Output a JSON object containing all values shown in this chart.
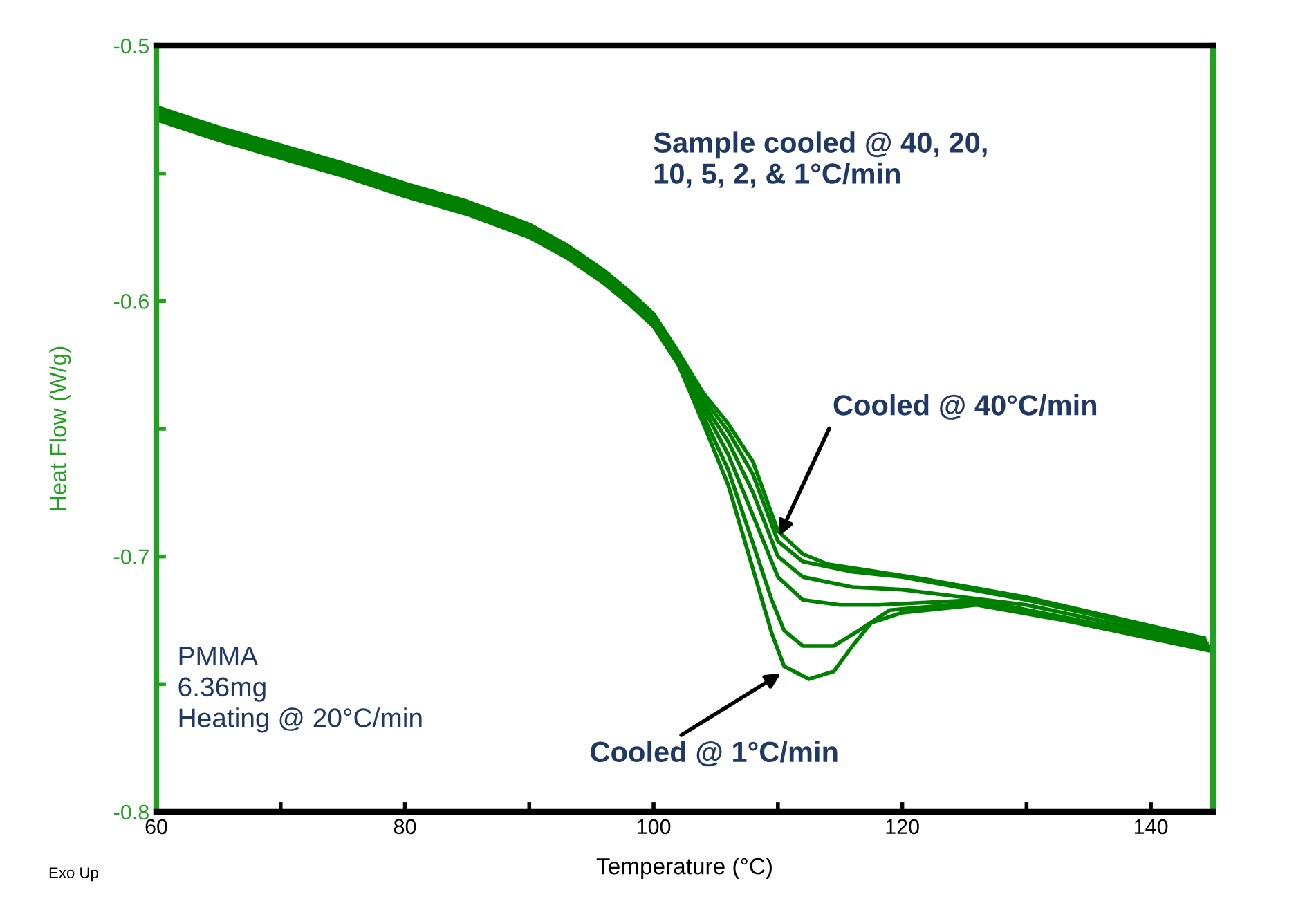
{
  "chart_data": {
    "type": "line",
    "xlabel": "Temperature (°C)",
    "ylabel": "Heat Flow (W/g)",
    "xlim": [
      60,
      145
    ],
    "ylim": [
      -0.8,
      -0.5
    ],
    "xticks": [
      60,
      {
        "value": 70,
        "label": null
      },
      80,
      {
        "value": 90,
        "label": null
      },
      100,
      {
        "value": 110,
        "label": null
      },
      120,
      {
        "value": 130,
        "label": null
      },
      140
    ],
    "yticks": [
      -0.8,
      {
        "value": -0.75,
        "label": null
      },
      -0.7,
      {
        "value": -0.65,
        "label": null
      },
      -0.6,
      {
        "value": -0.55,
        "label": null
      },
      -0.5
    ],
    "grid": false,
    "legend": false,
    "marker": "none",
    "line_style": "solid",
    "series": [
      {
        "color": "#008000",
        "x": [
          60,
          65,
          70,
          75,
          80,
          85,
          90,
          93,
          96,
          98,
          100,
          102,
          104,
          106,
          108,
          110,
          112,
          114,
          118,
          122,
          130,
          144.3
        ],
        "values": [
          -0.524,
          -0.532,
          -0.539,
          -0.546,
          -0.554,
          -0.561,
          -0.57,
          -0.578,
          -0.588,
          -0.596,
          -0.605,
          -0.62,
          -0.636,
          -0.648,
          -0.663,
          -0.69,
          -0.699,
          -0.703,
          -0.706,
          -0.709,
          -0.716,
          -0.732
        ]
      },
      {
        "color": "#008000",
        "x": [
          60,
          65,
          70,
          75,
          80,
          85,
          90,
          93,
          96,
          98,
          100,
          102,
          104,
          106,
          108,
          110,
          112,
          116,
          120,
          130,
          144.4
        ],
        "values": [
          -0.525,
          -0.533,
          -0.54,
          -0.547,
          -0.555,
          -0.562,
          -0.571,
          -0.579,
          -0.589,
          -0.597,
          -0.606,
          -0.621,
          -0.638,
          -0.651,
          -0.668,
          -0.694,
          -0.702,
          -0.706,
          -0.708,
          -0.717,
          -0.733
        ]
      },
      {
        "color": "#008000",
        "x": [
          60,
          65,
          70,
          75,
          80,
          85,
          90,
          93,
          96,
          98,
          100,
          102,
          104,
          106,
          108,
          110,
          112,
          116,
          120,
          130,
          144.5
        ],
        "values": [
          -0.526,
          -0.534,
          -0.541,
          -0.548,
          -0.556,
          -0.563,
          -0.572,
          -0.58,
          -0.59,
          -0.598,
          -0.607,
          -0.622,
          -0.64,
          -0.655,
          -0.675,
          -0.7,
          -0.708,
          -0.712,
          -0.713,
          -0.719,
          -0.734
        ]
      },
      {
        "color": "#008000",
        "x": [
          60,
          65,
          70,
          75,
          80,
          85,
          90,
          93,
          96,
          98,
          100,
          102,
          104,
          106,
          108,
          110,
          112,
          115,
          118,
          126,
          144.6
        ],
        "values": [
          -0.527,
          -0.535,
          -0.542,
          -0.549,
          -0.557,
          -0.564,
          -0.573,
          -0.581,
          -0.591,
          -0.599,
          -0.608,
          -0.623,
          -0.642,
          -0.66,
          -0.684,
          -0.708,
          -0.717,
          -0.719,
          -0.719,
          -0.717,
          -0.735
        ]
      },
      {
        "color": "#008000",
        "x": [
          60,
          65,
          70,
          75,
          80,
          85,
          90,
          93,
          96,
          98,
          100,
          102,
          104,
          106,
          108,
          109.5,
          110.5,
          112,
          114.5,
          116.5,
          119,
          126,
          133,
          144.7
        ],
        "values": [
          -0.528,
          -0.536,
          -0.543,
          -0.55,
          -0.558,
          -0.565,
          -0.574,
          -0.582,
          -0.592,
          -0.6,
          -0.609,
          -0.624,
          -0.645,
          -0.666,
          -0.695,
          -0.717,
          -0.729,
          -0.735,
          -0.735,
          -0.729,
          -0.721,
          -0.718,
          -0.724,
          -0.736
        ]
      },
      {
        "color": "#008000",
        "x": [
          60,
          65,
          70,
          75,
          80,
          85,
          90,
          93,
          96,
          98,
          100,
          102,
          104,
          106,
          108,
          109.5,
          110.5,
          112.5,
          114.5,
          116,
          117.5,
          120,
          126,
          133,
          144.8
        ],
        "values": [
          -0.529,
          -0.537,
          -0.544,
          -0.551,
          -0.559,
          -0.566,
          -0.575,
          -0.583,
          -0.593,
          -0.601,
          -0.61,
          -0.625,
          -0.648,
          -0.672,
          -0.705,
          -0.73,
          -0.743,
          -0.748,
          -0.745,
          -0.735,
          -0.726,
          -0.722,
          -0.719,
          -0.725,
          -0.737
        ]
      }
    ],
    "annotations": [
      "Sample cooled @ 40, 20,\n10, 5, 2, & 1°C/min",
      {
        "text": "Cooled @ 40°C/min",
        "x": 110.1,
        "y": -0.692
      },
      {
        "text": "Cooled @ 1°C/min",
        "x": 110.5,
        "y": -0.745
      },
      "PMMA\n6.36mg\nHeating @ 20°C/min",
      "Exo Up"
    ]
  }
}
